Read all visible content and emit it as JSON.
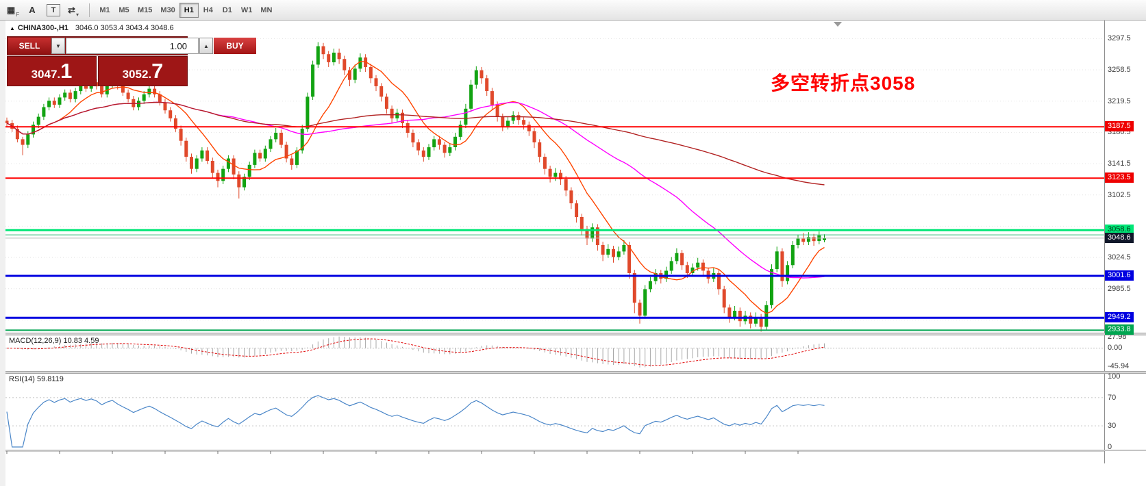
{
  "toolbar": {
    "icons": [
      {
        "name": "grid-pattern-icon",
        "glyph": "▦",
        "sub": "F"
      },
      {
        "name": "text-tool-icon",
        "glyph": "A",
        "sub": ""
      },
      {
        "name": "label-tool-icon",
        "glyph": "T",
        "sub": ""
      },
      {
        "name": "arrows-tool-icon",
        "glyph": "⇄",
        "sub": "▾"
      }
    ],
    "timeframes": [
      "M1",
      "M5",
      "M15",
      "M30",
      "H1",
      "H4",
      "D1",
      "W1",
      "MN"
    ],
    "active_timeframe": "H1"
  },
  "chart_header": {
    "collapse_arrow": "▲",
    "symbol": "CHINA300-,H1",
    "ohlc": "3046.0 3053.4 3043.4 3048.6"
  },
  "trade_panel": {
    "sell_label": "SELL",
    "buy_label": "BUY",
    "volume": "1.00",
    "down_glyph": "▼",
    "up_glyph": "▲",
    "sell_price_main": "3047.",
    "sell_price_big": "1",
    "buy_price_main": "3052.",
    "buy_price_big": "7"
  },
  "annotation": {
    "text": "多空转折点3058",
    "color": "#FF0000"
  },
  "price_axis": {
    "grid_prices": [
      3297.5,
      3258.5,
      3219.5,
      3180.5,
      3141.5,
      3102.5,
      3063.5,
      3024.5,
      2985.5,
      2946.5
    ],
    "visible_labels": [
      "3297.5",
      "3258.5",
      "3219.5",
      "3180.5",
      "3141.5",
      "3102.5",
      "3024.5",
      "2985.5"
    ],
    "badges": [
      {
        "text": "3187.5",
        "price": 3187.5,
        "bg": "#EE0000",
        "fg": "#ffffff"
      },
      {
        "text": "3123.5",
        "price": 3123.5,
        "bg": "#EE0000",
        "fg": "#ffffff"
      },
      {
        "text": "3058.6",
        "price": 3058.6,
        "bg": "#00E676",
        "fg": "#003317"
      },
      {
        "text": "3048.6",
        "price": 3048.6,
        "bg": "#10172a",
        "fg": "#ffffff"
      },
      {
        "text": "3001.6",
        "price": 3001.6,
        "bg": "#0000E0",
        "fg": "#ffffff"
      },
      {
        "text": "2949.2",
        "price": 2949.2,
        "bg": "#0000E0",
        "fg": "#ffffff"
      },
      {
        "text": "2933.8",
        "price": 2933.8,
        "bg": "#00A550",
        "fg": "#ffffff"
      }
    ]
  },
  "hlines": [
    {
      "price": 3187.5,
      "color": "#FF0000",
      "width": 2,
      "dash": false
    },
    {
      "price": 3123.5,
      "color": "#FF0000",
      "width": 2,
      "dash": false
    },
    {
      "price": 3058.6,
      "color": "#00E676",
      "width": 3,
      "dash": false
    },
    {
      "price": 3052.7,
      "color": "#2BB673",
      "width": 1,
      "dash": false
    },
    {
      "price": 3048.6,
      "color": "#B8B8B8",
      "width": 1,
      "dash": false
    },
    {
      "price": 3001.6,
      "color": "#0000E0",
      "width": 3,
      "dash": false
    },
    {
      "price": 2949.2,
      "color": "#0000E0",
      "width": 3,
      "dash": false
    },
    {
      "price": 2933.8,
      "color": "#00A550",
      "width": 2,
      "dash": false
    }
  ],
  "macd_panel": {
    "label": "MACD(12,26,9) 10.83 4.59",
    "axis": [
      {
        "text": "27.98",
        "value": 27.98
      },
      {
        "text": "0.00",
        "value": 0
      },
      {
        "text": "-45.94",
        "value": -45.94
      }
    ],
    "range": [
      -58,
      32
    ]
  },
  "rsi_panel": {
    "label": "RSI(14) 59.8119",
    "axis": [
      {
        "text": "100",
        "value": 100
      },
      {
        "text": "70",
        "value": 70
      },
      {
        "text": "30",
        "value": 30
      },
      {
        "text": "0",
        "value": 0
      }
    ],
    "levels": [
      70,
      30
    ]
  },
  "chart_data": {
    "type": "candlestick",
    "symbol": "CHINA300-",
    "timeframe": "H1",
    "current_bar": {
      "open": 3046.0,
      "high": 3053.4,
      "low": 3043.4,
      "close": 3048.6
    },
    "y_range": [
      2930.7,
      3320.0
    ],
    "colors": {
      "up": "#12A312",
      "down": "#E0492B",
      "grid": "#e4e4e4",
      "macd_hist": "#a8a8a8",
      "macd_signal": "#E00000",
      "rsi_line": "#4A86C8"
    },
    "overlays": [
      {
        "name": "ma-fast",
        "period": 10,
        "color": "#FF4500"
      },
      {
        "name": "ma-mid",
        "period": 40,
        "color": "#FF00FF"
      },
      {
        "name": "ma-slow",
        "period": 120,
        "color": "#B22222"
      }
    ],
    "macd": {
      "params": [
        12,
        26,
        9
      ],
      "main": 10.83,
      "signal": 4.59
    },
    "rsi": {
      "period": 14,
      "value": 59.8119
    },
    "candles": [
      [
        3195,
        3199,
        3188,
        3192
      ],
      [
        3192,
        3196,
        3181,
        3185
      ],
      [
        3185,
        3189,
        3168,
        3172
      ],
      [
        3172,
        3175,
        3152,
        3165
      ],
      [
        3165,
        3182,
        3161,
        3178
      ],
      [
        3178,
        3194,
        3174,
        3190
      ],
      [
        3190,
        3204,
        3186,
        3200
      ],
      [
        3200,
        3216,
        3196,
        3212
      ],
      [
        3212,
        3224,
        3208,
        3220
      ],
      [
        3220,
        3224,
        3211,
        3215
      ],
      [
        3215,
        3228,
        3211,
        3224
      ],
      [
        3224,
        3234,
        3220,
        3230
      ],
      [
        3230,
        3234,
        3218,
        3222
      ],
      [
        3222,
        3236,
        3218,
        3232
      ],
      [
        3232,
        3244,
        3228,
        3240
      ],
      [
        3240,
        3244,
        3231,
        3235
      ],
      [
        3235,
        3247,
        3231,
        3243
      ],
      [
        3243,
        3247,
        3234,
        3238
      ],
      [
        3238,
        3242,
        3224,
        3228
      ],
      [
        3228,
        3244,
        3224,
        3240
      ],
      [
        3240,
        3252,
        3236,
        3248
      ],
      [
        3248,
        3252,
        3234,
        3238
      ],
      [
        3238,
        3242,
        3226,
        3230
      ],
      [
        3230,
        3234,
        3218,
        3222
      ],
      [
        3222,
        3226,
        3208,
        3212
      ],
      [
        3212,
        3224,
        3208,
        3220
      ],
      [
        3220,
        3232,
        3216,
        3228
      ],
      [
        3228,
        3239,
        3224,
        3235
      ],
      [
        3235,
        3239,
        3224,
        3228
      ],
      [
        3228,
        3232,
        3214,
        3218
      ],
      [
        3218,
        3222,
        3204,
        3208
      ],
      [
        3208,
        3212,
        3194,
        3198
      ],
      [
        3198,
        3202,
        3181,
        3185
      ],
      [
        3185,
        3189,
        3164,
        3170
      ],
      [
        3170,
        3174,
        3144,
        3150
      ],
      [
        3150,
        3154,
        3129,
        3135
      ],
      [
        3135,
        3152,
        3131,
        3148
      ],
      [
        3148,
        3162,
        3144,
        3158
      ],
      [
        3158,
        3162,
        3141,
        3145
      ],
      [
        3145,
        3149,
        3124,
        3130
      ],
      [
        3130,
        3134,
        3112,
        3120
      ],
      [
        3120,
        3139,
        3116,
        3135
      ],
      [
        3135,
        3152,
        3131,
        3148
      ],
      [
        3148,
        3152,
        3122,
        3128
      ],
      [
        3128,
        3132,
        3098,
        3112
      ],
      [
        3112,
        3129,
        3108,
        3125
      ],
      [
        3125,
        3144,
        3121,
        3140
      ],
      [
        3140,
        3159,
        3136,
        3155
      ],
      [
        3155,
        3159,
        3144,
        3148
      ],
      [
        3148,
        3164,
        3144,
        3160
      ],
      [
        3160,
        3176,
        3156,
        3172
      ],
      [
        3172,
        3186,
        3168,
        3180
      ],
      [
        3180,
        3184,
        3161,
        3165
      ],
      [
        3165,
        3169,
        3143,
        3148
      ],
      [
        3148,
        3152,
        3134,
        3140
      ],
      [
        3140,
        3162,
        3136,
        3158
      ],
      [
        3158,
        3190,
        3154,
        3185
      ],
      [
        3185,
        3230,
        3181,
        3225
      ],
      [
        3225,
        3270,
        3221,
        3265
      ],
      [
        3265,
        3293,
        3261,
        3288
      ],
      [
        3288,
        3292,
        3272,
        3278
      ],
      [
        3278,
        3282,
        3262,
        3268
      ],
      [
        3268,
        3285,
        3264,
        3280
      ],
      [
        3280,
        3285,
        3266,
        3272
      ],
      [
        3272,
        3276,
        3252,
        3258
      ],
      [
        3258,
        3262,
        3238,
        3246
      ],
      [
        3246,
        3265,
        3242,
        3260
      ],
      [
        3260,
        3279,
        3256,
        3274
      ],
      [
        3274,
        3278,
        3256,
        3262
      ],
      [
        3262,
        3266,
        3242,
        3248
      ],
      [
        3248,
        3252,
        3232,
        3238
      ],
      [
        3238,
        3242,
        3219,
        3225
      ],
      [
        3225,
        3229,
        3204,
        3210
      ],
      [
        3210,
        3214,
        3192,
        3198
      ],
      [
        3198,
        3210,
        3194,
        3205
      ],
      [
        3205,
        3209,
        3186,
        3192
      ],
      [
        3192,
        3196,
        3174,
        3180
      ],
      [
        3180,
        3184,
        3162,
        3168
      ],
      [
        3168,
        3172,
        3152,
        3158
      ],
      [
        3158,
        3162,
        3144,
        3150
      ],
      [
        3150,
        3166,
        3146,
        3162
      ],
      [
        3162,
        3176,
        3158,
        3172
      ],
      [
        3172,
        3176,
        3159,
        3165
      ],
      [
        3165,
        3169,
        3149,
        3155
      ],
      [
        3155,
        3167,
        3151,
        3162
      ],
      [
        3162,
        3180,
        3158,
        3175
      ],
      [
        3175,
        3195,
        3171,
        3190
      ],
      [
        3190,
        3216,
        3186,
        3210
      ],
      [
        3210,
        3246,
        3206,
        3240
      ],
      [
        3240,
        3263,
        3235,
        3258
      ],
      [
        3258,
        3262,
        3241,
        3248
      ],
      [
        3248,
        3252,
        3226,
        3232
      ],
      [
        3232,
        3236,
        3209,
        3215
      ],
      [
        3215,
        3219,
        3194,
        3200
      ],
      [
        3200,
        3204,
        3182,
        3188
      ],
      [
        3188,
        3200,
        3184,
        3195
      ],
      [
        3195,
        3207,
        3191,
        3202
      ],
      [
        3202,
        3206,
        3190,
        3196
      ],
      [
        3196,
        3200,
        3184,
        3190
      ],
      [
        3190,
        3194,
        3176,
        3182
      ],
      [
        3182,
        3186,
        3161,
        3168
      ],
      [
        3168,
        3172,
        3143,
        3150
      ],
      [
        3150,
        3154,
        3128,
        3135
      ],
      [
        3135,
        3139,
        3118,
        3125
      ],
      [
        3125,
        3136,
        3120,
        3130
      ],
      [
        3130,
        3134,
        3115,
        3122
      ],
      [
        3122,
        3126,
        3101,
        3108
      ],
      [
        3108,
        3112,
        3085,
        3092
      ],
      [
        3092,
        3096,
        3068,
        3075
      ],
      [
        3075,
        3079,
        3052,
        3060
      ],
      [
        3060,
        3064,
        3040,
        3048
      ],
      [
        3048,
        3067,
        3044,
        3062
      ],
      [
        3062,
        3066,
        3033,
        3040
      ],
      [
        3040,
        3044,
        3020,
        3028
      ],
      [
        3028,
        3041,
        3024,
        3035
      ],
      [
        3035,
        3039,
        3018,
        3025
      ],
      [
        3025,
        3038,
        3021,
        3032
      ],
      [
        3032,
        3046,
        3028,
        3040
      ],
      [
        3040,
        3044,
        2998,
        3005
      ],
      [
        3005,
        3009,
        2955,
        2968
      ],
      [
        2968,
        2972,
        2942,
        2952
      ],
      [
        2952,
        2990,
        2948,
        2985
      ],
      [
        2985,
        3000,
        2981,
        2995
      ],
      [
        2995,
        3010,
        2991,
        3005
      ],
      [
        3005,
        3009,
        2992,
        2998
      ],
      [
        2998,
        3013,
        2994,
        3008
      ],
      [
        3008,
        3025,
        3004,
        3020
      ],
      [
        3020,
        3036,
        3016,
        3030
      ],
      [
        3030,
        3034,
        3009,
        3015
      ],
      [
        3015,
        3019,
        2999,
        3005
      ],
      [
        3005,
        3017,
        3001,
        3012
      ],
      [
        3012,
        3024,
        3008,
        3018
      ],
      [
        3018,
        3022,
        3002,
        3008
      ],
      [
        3008,
        3012,
        2992,
        2998
      ],
      [
        2998,
        3011,
        2994,
        3005
      ],
      [
        3005,
        3009,
        2978,
        2985
      ],
      [
        2985,
        2989,
        2955,
        2962
      ],
      [
        2962,
        2966,
        2943,
        2950
      ],
      [
        2950,
        2964,
        2946,
        2958
      ],
      [
        2958,
        2962,
        2938,
        2945
      ],
      [
        2945,
        2958,
        2941,
        2952
      ],
      [
        2952,
        2956,
        2936,
        2942
      ],
      [
        2942,
        2956,
        2938,
        2950
      ],
      [
        2950,
        2954,
        2932,
        2938
      ],
      [
        2938,
        2970,
        2934,
        2965
      ],
      [
        2965,
        3016,
        2961,
        3010
      ],
      [
        3010,
        3038,
        3006,
        3032
      ],
      [
        3032,
        3036,
        2988,
        2995
      ],
      [
        2995,
        3020,
        2991,
        3015
      ],
      [
        3015,
        3045,
        3011,
        3040
      ],
      [
        3040,
        3053,
        3036,
        3048
      ],
      [
        3048,
        3055,
        3040,
        3044
      ],
      [
        3044,
        3056,
        3040,
        3050
      ],
      [
        3050,
        3054,
        3039,
        3045
      ],
      [
        3045,
        3057,
        3041,
        3052
      ],
      [
        3046,
        3053.4,
        3043.4,
        3048.6
      ]
    ]
  }
}
